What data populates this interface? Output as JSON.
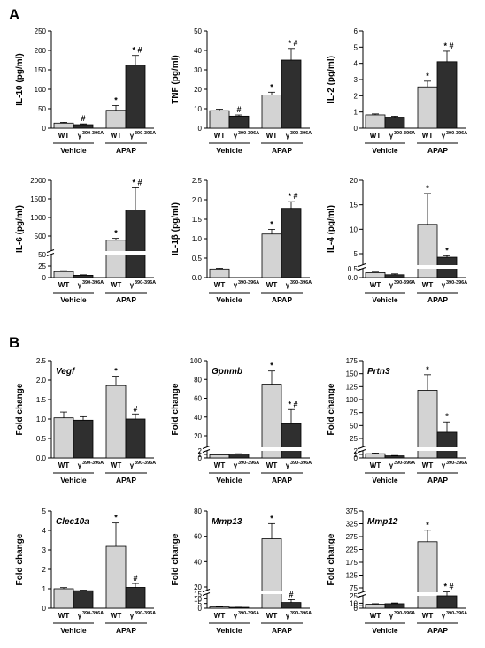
{
  "panels": [
    {
      "label": "A"
    },
    {
      "label": "B"
    }
  ],
  "common": {
    "group_labels": [
      "Vehicle",
      "APAP"
    ],
    "bar_labels": [
      "WT",
      "γ",
      "WT",
      "γ"
    ],
    "bar_label_sups": [
      "",
      "390-396A",
      "",
      "390-396A"
    ],
    "bar_colors": [
      "#d3d3d3",
      "#2f2f2f",
      "#d3d3d3",
      "#2f2f2f"
    ]
  },
  "chart_data": [
    {
      "type": "bar",
      "ylabel": "IL-10 (pg/ml)",
      "ylim": [
        0,
        250
      ],
      "yticks": [
        "0",
        "50",
        "100",
        "150",
        "200",
        "250"
      ],
      "values": [
        13,
        9,
        46,
        162
      ],
      "errors": [
        2,
        2,
        12,
        25
      ],
      "annotations": [
        "",
        "#",
        "*",
        "* #"
      ]
    },
    {
      "type": "bar",
      "ylabel": "TNF (pg/ml)",
      "ylim": [
        0,
        50
      ],
      "yticks": [
        "0",
        "10",
        "20",
        "30",
        "40",
        "50"
      ],
      "values": [
        9,
        6.2,
        17,
        35
      ],
      "errors": [
        0.8,
        0.6,
        1.5,
        6
      ],
      "annotations": [
        "",
        "#",
        "*",
        "* #"
      ]
    },
    {
      "type": "bar",
      "ylabel": "IL-2 (pg/ml)",
      "ylim": [
        0,
        6
      ],
      "yticks": [
        "0",
        "1",
        "2",
        "3",
        "4",
        "5",
        "6"
      ],
      "values": [
        0.82,
        0.68,
        2.55,
        4.1
      ],
      "errors": [
        0.06,
        0.06,
        0.35,
        0.65
      ],
      "annotations": [
        "",
        "",
        "*",
        "* #"
      ]
    },
    {
      "type": "bar",
      "ylabel": "IL-6 (pg/ml)",
      "ylim": [
        0,
        2000
      ],
      "yticks": [
        "0",
        "25",
        "50",
        "500",
        "1000",
        "1500",
        "2000"
      ],
      "values": [
        13,
        5,
        375,
        1200
      ],
      "errors": [
        2,
        1,
        55,
        600
      ],
      "annotations": [
        "",
        "",
        "*",
        "* #"
      ]
    },
    {
      "type": "bar",
      "ylabel": "IL-1β (pg/ml)",
      "ylim": [
        0,
        2.5
      ],
      "yticks": [
        "0.0",
        "0.5",
        "1.0",
        "1.5",
        "2.0",
        "2.5"
      ],
      "values": [
        0.22,
        0.0,
        1.12,
        1.78
      ],
      "errors": [
        0.02,
        0.0,
        0.12,
        0.17
      ],
      "annotations": [
        "",
        "",
        "*",
        "* #"
      ]
    },
    {
      "type": "bar",
      "ylabel": "IL-4 (pg/ml)",
      "ylim": [
        0,
        20
      ],
      "yticks": [
        "0.0",
        "0.5",
        "5",
        "10",
        "15",
        "20"
      ],
      "values": [
        0.28,
        0.16,
        11,
        3.6
      ],
      "errors": [
        0.03,
        0.05,
        6.3,
        0.6
      ],
      "annotations": [
        "",
        "",
        "*",
        "*"
      ]
    },
    {
      "type": "bar",
      "gene": "Vegf",
      "ylabel": "Fold change",
      "ylim": [
        0,
        2.5
      ],
      "yticks": [
        "0.0",
        "0.5",
        "1.0",
        "1.5",
        "2.0",
        "2.5"
      ],
      "values": [
        1.03,
        0.97,
        1.86,
        1.0
      ],
      "errors": [
        0.15,
        0.09,
        0.24,
        0.13
      ],
      "annotations": [
        "",
        "",
        "*",
        "#"
      ]
    },
    {
      "type": "bar",
      "gene": "Gpnmb",
      "ylabel": "Fold change",
      "ylim": [
        0,
        100
      ],
      "yticks": [
        "0",
        "1",
        "2",
        "20",
        "40",
        "60",
        "80",
        "100"
      ],
      "values": [
        0.9,
        1.1,
        75,
        33
      ],
      "errors": [
        0.15,
        0.1,
        14,
        15
      ],
      "annotations": [
        "",
        "",
        "*",
        "* #"
      ]
    },
    {
      "type": "bar",
      "gene": "Prtn3",
      "ylabel": "Fold change",
      "ylim": [
        0,
        175
      ],
      "yticks": [
        "0",
        "1",
        "2",
        "25",
        "50",
        "75",
        "100",
        "125",
        "150",
        "175"
      ],
      "values": [
        1.2,
        0.6,
        118,
        37
      ],
      "errors": [
        0.2,
        0.1,
        30,
        20
      ],
      "annotations": [
        "",
        "",
        "*",
        "*"
      ]
    },
    {
      "type": "bar",
      "gene": "Clec10a",
      "ylabel": "Fold change",
      "ylim": [
        0,
        5
      ],
      "yticks": [
        "0",
        "1",
        "2",
        "3",
        "4",
        "5"
      ],
      "values": [
        1.0,
        0.9,
        3.18,
        1.07
      ],
      "errors": [
        0.06,
        0.03,
        1.2,
        0.2
      ],
      "annotations": [
        "",
        "",
        "*",
        "#"
      ]
    },
    {
      "type": "bar",
      "gene": "Mmp13",
      "ylabel": "Fold change",
      "ylim": [
        0,
        80
      ],
      "yticks": [
        "0",
        "5",
        "10",
        "15",
        "20",
        "40",
        "60",
        "80"
      ],
      "values": [
        1.3,
        0.9,
        58,
        6
      ],
      "errors": [
        0.3,
        0.15,
        12,
        3
      ],
      "annotations": [
        "",
        "",
        "*",
        "#"
      ]
    },
    {
      "type": "bar",
      "gene": "Mmp12",
      "ylabel": "Fold change",
      "ylim": [
        0,
        375
      ],
      "yticks": [
        "0",
        "5",
        "10",
        "25",
        "75",
        "125",
        "175",
        "225",
        "275",
        "325",
        "375"
      ],
      "values": [
        8,
        9,
        255,
        25
      ],
      "errors": [
        1,
        1.5,
        45,
        4
      ],
      "annotations": [
        "",
        "",
        "*",
        "* #"
      ]
    }
  ]
}
